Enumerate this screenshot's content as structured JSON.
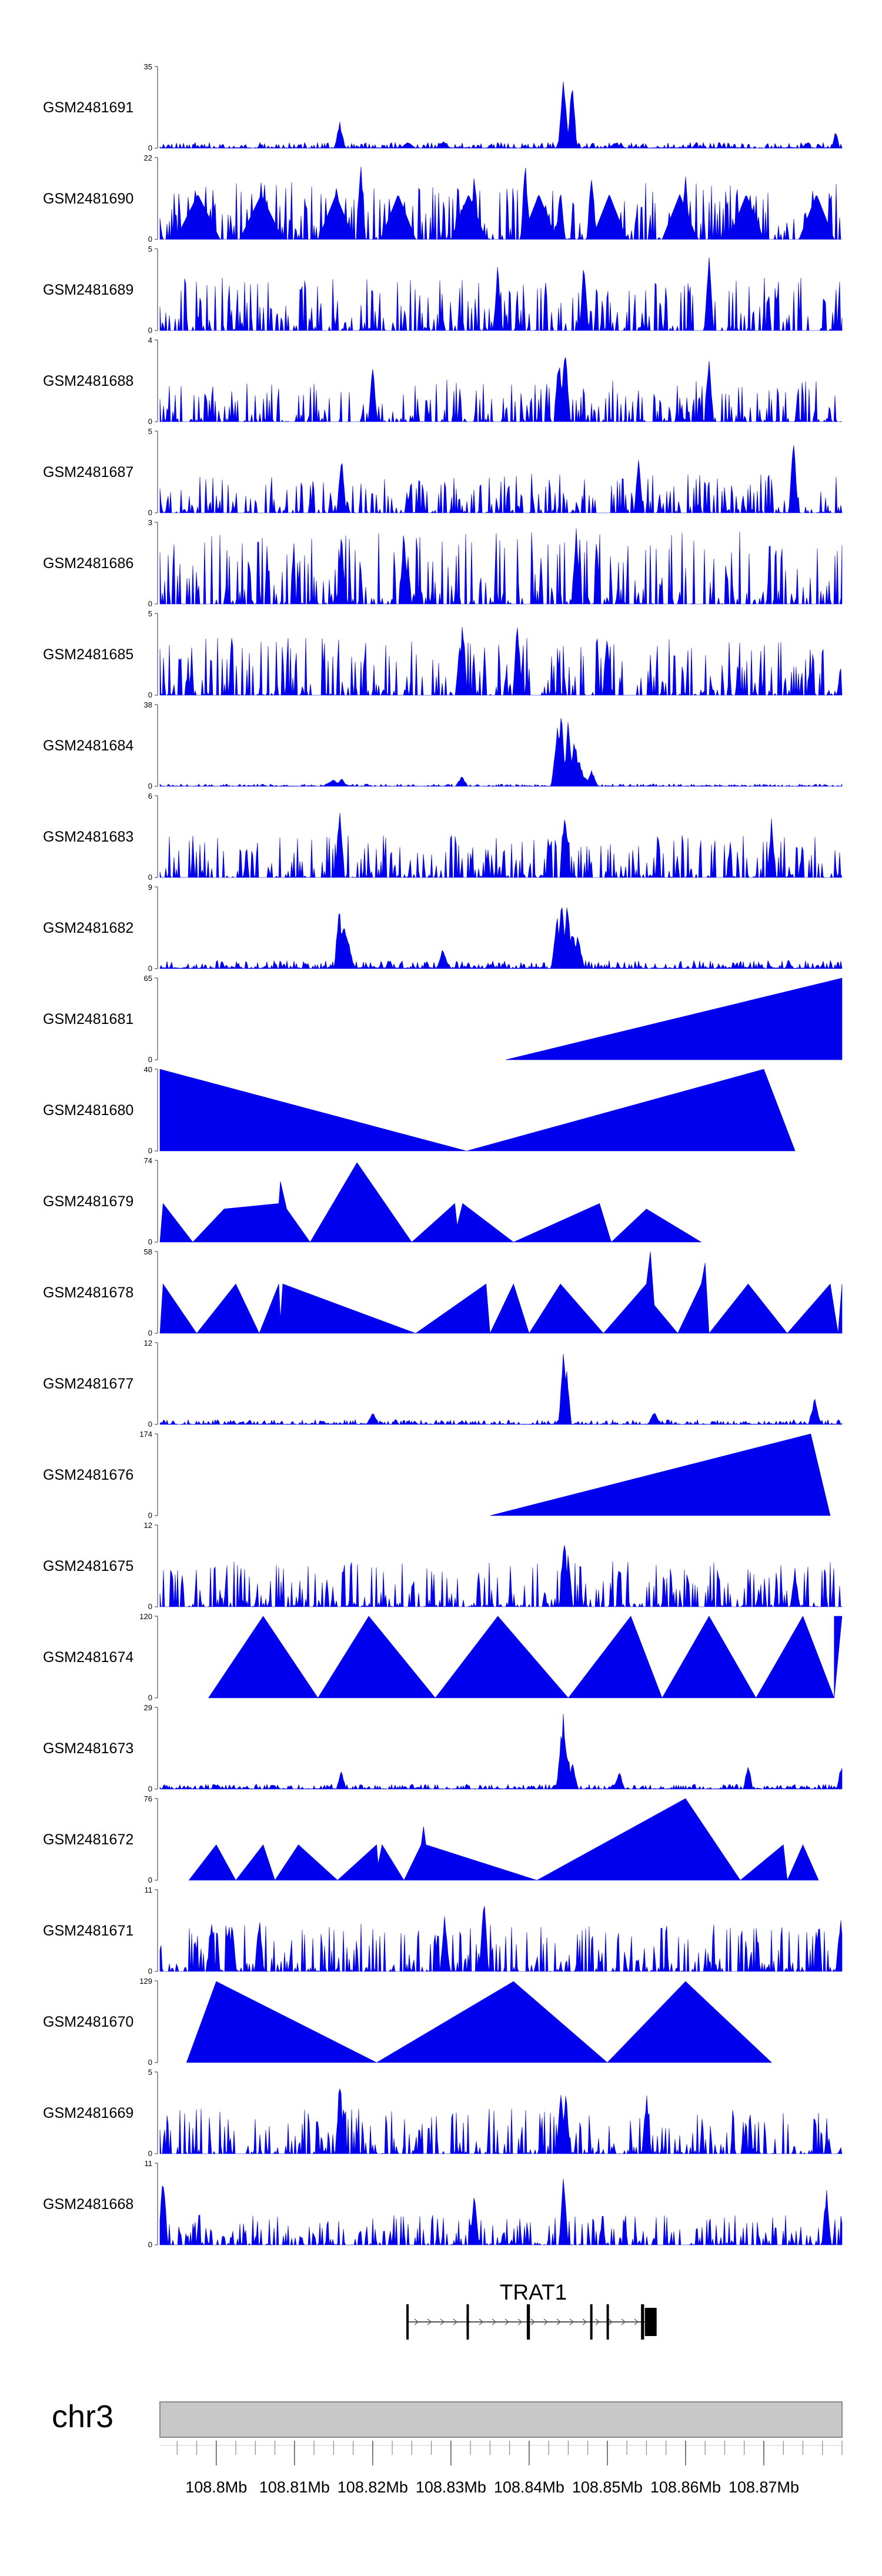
{
  "colors": {
    "signal": "#0000ee",
    "axis": "#555555",
    "ideogram_fill": "#c8c8c8",
    "ideogram_stroke": "#8a8a8a",
    "gene_line": "#555555"
  },
  "chart_data": {
    "type": "area",
    "description_role": "genome browser coverage tracks",
    "chromosome": "chr3",
    "x_range_mb": [
      108.7928,
      108.88
    ],
    "tracks": [
      {
        "name": "GSM2481691",
        "ymax": 35,
        "ymin": 0,
        "style": "noise",
        "base": 0.07,
        "seed": 11,
        "peaks": [
          [
            108.8444,
            34,
            0.0007
          ],
          [
            108.8455,
            33,
            0.0006
          ],
          [
            108.8158,
            12,
            0.0007
          ],
          [
            108.8792,
            8,
            0.0005
          ],
          [
            108.8245,
            3,
            0.001
          ],
          [
            108.829,
            3,
            0.001
          ],
          [
            108.851,
            2.5,
            0.001
          ]
        ]
      },
      {
        "name": "GSM2481690",
        "ymax": 22,
        "ymin": 0,
        "style": "triangles",
        "base": 0.42,
        "seed": 12,
        "tri": [
          108.7948,
          108.8005,
          108.803,
          108.8085,
          108.813,
          108.8176,
          108.821,
          108.8255,
          108.83,
          108.8345,
          108.839,
          108.8435,
          108.848,
          108.8525,
          108.857,
          108.8615,
          108.8655,
          108.87,
          108.8745,
          108.879
        ],
        "peaks": [
          [
            108.8185,
            22,
            0.0006
          ],
          [
            108.8395,
            22,
            0.0006
          ],
          [
            108.848,
            21,
            0.0006
          ],
          [
            108.833,
            20,
            0.0006
          ],
          [
            108.86,
            18,
            0.0006
          ],
          [
            108.844,
            16,
            0.0006
          ]
        ]
      },
      {
        "name": "GSM2481689",
        "ymax": 5,
        "ymin": 0,
        "style": "spiky",
        "base": 0.35,
        "seed": 13,
        "peaks": [
          [
            108.863,
            5,
            0.0006
          ],
          [
            108.847,
            4.5,
            0.0006
          ],
          [
            108.836,
            4.3,
            0.0006
          ]
        ]
      },
      {
        "name": "GSM2481688",
        "ymax": 4,
        "ymin": 0,
        "style": "spiky",
        "base": 0.28,
        "seed": 14,
        "peaks": [
          [
            108.8446,
            4,
            0.0007
          ],
          [
            108.8438,
            3.4,
            0.0006
          ],
          [
            108.863,
            3.5,
            0.0006
          ],
          [
            108.82,
            3,
            0.0006
          ]
        ]
      },
      {
        "name": "GSM2481687",
        "ymax": 5,
        "ymin": 0,
        "style": "spiky",
        "base": 0.26,
        "seed": 15,
        "peaks": [
          [
            108.8738,
            5,
            0.0006
          ],
          [
            108.816,
            4,
            0.0006
          ],
          [
            108.854,
            3.5,
            0.0006
          ]
        ]
      },
      {
        "name": "GSM2481686",
        "ymax": 3,
        "ymin": 0,
        "style": "spiky",
        "base": 0.48,
        "seed": 16,
        "peaks": [
          [
            108.824,
            3,
            0.0006
          ],
          [
            108.846,
            3,
            0.0006
          ],
          [
            108.816,
            3,
            0.0006
          ]
        ]
      },
      {
        "name": "GSM2481685",
        "ymax": 5,
        "ymin": 0,
        "style": "spiky",
        "base": 0.38,
        "seed": 17,
        "peaks": [
          [
            108.8315,
            5,
            0.0006
          ],
          [
            108.8385,
            5,
            0.0006
          ],
          [
            108.85,
            4.2,
            0.0006
          ]
        ]
      },
      {
        "name": "GSM2481684",
        "ymax": 38,
        "ymin": 0,
        "style": "noise",
        "base": 0.03,
        "seed": 18,
        "peaks": [
          [
            108.8441,
            38,
            0.0006
          ],
          [
            108.845,
            32,
            0.0006
          ],
          [
            108.8436,
            28,
            0.0008
          ],
          [
            108.8458,
            25,
            0.0007
          ],
          [
            108.8464,
            14,
            0.0008
          ],
          [
            108.848,
            8,
            0.0008
          ],
          [
            108.8465,
            6,
            0.0025
          ],
          [
            108.8314,
            5,
            0.0008
          ],
          [
            108.816,
            4,
            0.0008
          ],
          [
            108.815,
            3,
            0.0015
          ]
        ]
      },
      {
        "name": "GSM2481683",
        "ymax": 6,
        "ymin": 0,
        "style": "spiky",
        "base": 0.28,
        "seed": 19,
        "peaks": [
          [
            108.8158,
            6,
            0.0006
          ],
          [
            108.8446,
            5.5,
            0.0006
          ],
          [
            108.871,
            4.5,
            0.0006
          ]
        ]
      },
      {
        "name": "GSM2481682",
        "ymax": 9,
        "ymin": 0,
        "style": "noise",
        "base": 0.1,
        "seed": 20,
        "peaks": [
          [
            108.8442,
            9,
            0.0006
          ],
          [
            108.8449,
            8,
            0.0006
          ],
          [
            108.8436,
            6,
            0.0008
          ],
          [
            108.8157,
            8,
            0.0006
          ],
          [
            108.8163,
            6,
            0.0007
          ],
          [
            108.8168,
            4,
            0.0008
          ],
          [
            108.8455,
            5,
            0.0008
          ],
          [
            108.8462,
            4,
            0.0009
          ],
          [
            108.829,
            2.5,
            0.0008
          ]
        ]
      },
      {
        "name": "GSM2481681",
        "ymax": 65,
        "ymin": 0,
        "style": "poly",
        "poly": [
          [
            108.837,
            0
          ],
          [
            108.88,
            65
          ],
          [
            108.88,
            0
          ]
        ]
      },
      {
        "name": "GSM2481680",
        "ymax": 40,
        "ymin": 0,
        "style": "poly",
        "poly": [
          [
            108.7928,
            40
          ],
          [
            108.832,
            0
          ],
          [
            108.87,
            40
          ],
          [
            108.874,
            0
          ]
        ]
      },
      {
        "name": "GSM2481679",
        "ymax": 74,
        "ymin": 0,
        "style": "poly",
        "poly": [
          [
            108.7928,
            0
          ],
          [
            108.7932,
            35
          ],
          [
            108.797,
            0
          ],
          [
            108.801,
            30
          ],
          [
            108.808,
            35
          ],
          [
            108.8082,
            55
          ],
          [
            108.809,
            30
          ],
          [
            108.812,
            0
          ],
          [
            108.818,
            72
          ],
          [
            108.825,
            0
          ],
          [
            108.8305,
            35
          ],
          [
            108.8308,
            15
          ],
          [
            108.8315,
            35
          ],
          [
            108.838,
            0
          ],
          [
            108.849,
            35
          ],
          [
            108.8505,
            0
          ],
          [
            108.855,
            30
          ],
          [
            108.862,
            0
          ]
        ]
      },
      {
        "name": "GSM2481678",
        "ymax": 58,
        "ymin": 0,
        "style": "poly",
        "poly": [
          [
            108.7928,
            0
          ],
          [
            108.7932,
            35
          ],
          [
            108.7975,
            0
          ],
          [
            108.8025,
            35
          ],
          [
            108.8055,
            0
          ],
          [
            108.808,
            35
          ],
          [
            108.8082,
            10
          ],
          [
            108.8085,
            35
          ],
          [
            108.8255,
            0
          ],
          [
            108.8345,
            35
          ],
          [
            108.835,
            0
          ],
          [
            108.838,
            35
          ],
          [
            108.84,
            0
          ],
          [
            108.844,
            35
          ],
          [
            108.8495,
            0
          ],
          [
            108.855,
            35
          ],
          [
            108.8555,
            58
          ],
          [
            108.856,
            20
          ],
          [
            108.859,
            0
          ],
          [
            108.862,
            35
          ],
          [
            108.8625,
            50
          ],
          [
            108.863,
            0
          ],
          [
            108.868,
            35
          ],
          [
            108.873,
            0
          ],
          [
            108.8785,
            35
          ],
          [
            108.8795,
            0
          ],
          [
            108.88,
            35
          ]
        ]
      },
      {
        "name": "GSM2481677",
        "ymax": 12,
        "ymin": 0,
        "style": "noise",
        "base": 0.06,
        "seed": 21,
        "peaks": [
          [
            108.8444,
            12,
            0.0006
          ],
          [
            108.8448,
            9,
            0.0006
          ],
          [
            108.8765,
            4,
            0.0008
          ],
          [
            108.82,
            2,
            0.0008
          ],
          [
            108.856,
            2,
            0.0008
          ]
        ]
      },
      {
        "name": "GSM2481676",
        "ymax": 174,
        "ymin": 0,
        "style": "poly",
        "poly": [
          [
            108.835,
            0
          ],
          [
            108.876,
            174
          ],
          [
            108.8785,
            0
          ]
        ]
      },
      {
        "name": "GSM2481675",
        "ymax": 12,
        "ymin": 0,
        "style": "spiky",
        "base": 0.3,
        "seed": 22,
        "peaks": [
          [
            108.8445,
            12,
            0.0006
          ],
          [
            108.845,
            8,
            0.0006
          ],
          [
            108.874,
            6,
            0.0006
          ]
        ]
      },
      {
        "name": "GSM2481674",
        "ymax": 120,
        "ymin": 0,
        "style": "poly",
        "poly": [
          [
            108.799,
            0
          ],
          [
            108.806,
            120
          ],
          [
            108.813,
            0
          ],
          [
            108.8195,
            120
          ],
          [
            108.828,
            0
          ],
          [
            108.836,
            120
          ],
          [
            108.845,
            0
          ],
          [
            108.853,
            120
          ],
          [
            108.857,
            0
          ],
          [
            108.863,
            120
          ],
          [
            108.869,
            0
          ],
          [
            108.875,
            120
          ],
          [
            108.879,
            0
          ],
          [
            108.88,
            120
          ],
          [
            108.879,
            120
          ]
        ]
      },
      {
        "name": "GSM2481673",
        "ymax": 29,
        "ymin": 0,
        "style": "noise",
        "base": 0.06,
        "seed": 23,
        "peaks": [
          [
            108.8444,
            29,
            0.0006
          ],
          [
            108.8441,
            22,
            0.0006
          ],
          [
            108.8449,
            15,
            0.0006
          ],
          [
            108.8455,
            10,
            0.0008
          ],
          [
            108.868,
            10,
            0.0006
          ],
          [
            108.8799,
            9,
            0.0006
          ],
          [
            108.816,
            7,
            0.0006
          ],
          [
            108.8515,
            7,
            0.0007
          ]
        ]
      },
      {
        "name": "GSM2481672",
        "ymax": 76,
        "ymin": 0,
        "style": "poly",
        "poly": [
          [
            108.7965,
            0
          ],
          [
            108.8,
            33
          ],
          [
            108.8025,
            0
          ],
          [
            108.806,
            33
          ],
          [
            108.8075,
            0
          ],
          [
            108.8105,
            33
          ],
          [
            108.8155,
            0
          ],
          [
            108.8205,
            33
          ],
          [
            108.8207,
            15
          ],
          [
            108.8212,
            33
          ],
          [
            108.824,
            0
          ],
          [
            108.8262,
            33
          ],
          [
            108.8265,
            50
          ],
          [
            108.8268,
            33
          ],
          [
            108.841,
            0
          ],
          [
            108.86,
            76
          ],
          [
            108.867,
            0
          ],
          [
            108.8725,
            33
          ],
          [
            108.873,
            0
          ],
          [
            108.875,
            33
          ],
          [
            108.877,
            0
          ]
        ]
      },
      {
        "name": "GSM2481671",
        "ymax": 11,
        "ymin": 0,
        "style": "spiky",
        "base": 0.32,
        "seed": 24,
        "peaks": [
          [
            108.8342,
            11,
            0.0006
          ],
          [
            108.8292,
            9,
            0.0006
          ],
          [
            108.8798,
            8,
            0.0006
          ],
          [
            108.8055,
            8,
            0.0006
          ],
          [
            108.802,
            7,
            0.0006
          ]
        ]
      },
      {
        "name": "GSM2481670",
        "ymax": 129,
        "ymin": 0,
        "style": "poly",
        "poly": [
          [
            108.7962,
            0
          ],
          [
            108.8,
            128
          ],
          [
            108.8205,
            0
          ],
          [
            108.838,
            128
          ],
          [
            108.85,
            0
          ],
          [
            108.86,
            128
          ],
          [
            108.871,
            0
          ]
        ]
      },
      {
        "name": "GSM2481669",
        "ymax": 5,
        "ymin": 0,
        "style": "spiky",
        "base": 0.3,
        "seed": 25,
        "peaks": [
          [
            108.8158,
            5,
            0.0006
          ],
          [
            108.8441,
            4.5,
            0.0006
          ],
          [
            108.8447,
            4,
            0.0006
          ],
          [
            108.855,
            4,
            0.0006
          ]
        ]
      },
      {
        "name": "GSM2481668",
        "ymax": 11,
        "ymin": 0,
        "style": "spiky",
        "base": 0.2,
        "seed": 26,
        "peaks": [
          [
            108.7932,
            11,
            0.0006
          ],
          [
            108.8444,
            10,
            0.0006
          ],
          [
            108.878,
            8,
            0.0006
          ],
          [
            108.833,
            7,
            0.0006
          ]
        ]
      }
    ],
    "gene": {
      "name": "TRAT1",
      "start_mb": 108.8243,
      "end_mb": 108.8563,
      "strand": "+",
      "exons_mb": [
        [
          108.8243,
          108.8246
        ],
        [
          108.832,
          108.8323
        ],
        [
          108.8397,
          108.8401
        ],
        [
          108.8478,
          108.8481
        ],
        [
          108.8499,
          108.8502
        ],
        [
          108.8543,
          108.8547
        ],
        [
          108.8548,
          108.8563
        ]
      ]
    },
    "axis": {
      "major_ticks_mb": [
        108.8,
        108.81,
        108.82,
        108.83,
        108.84,
        108.85,
        108.86,
        108.87
      ],
      "tick_labels": [
        "108.8Mb",
        "108.81Mb",
        "108.82Mb",
        "108.83Mb",
        "108.84Mb",
        "108.85Mb",
        "108.86Mb",
        "108.87Mb"
      ],
      "minor_step_mb": 0.0025,
      "minor_start_mb": 108.795
    }
  }
}
